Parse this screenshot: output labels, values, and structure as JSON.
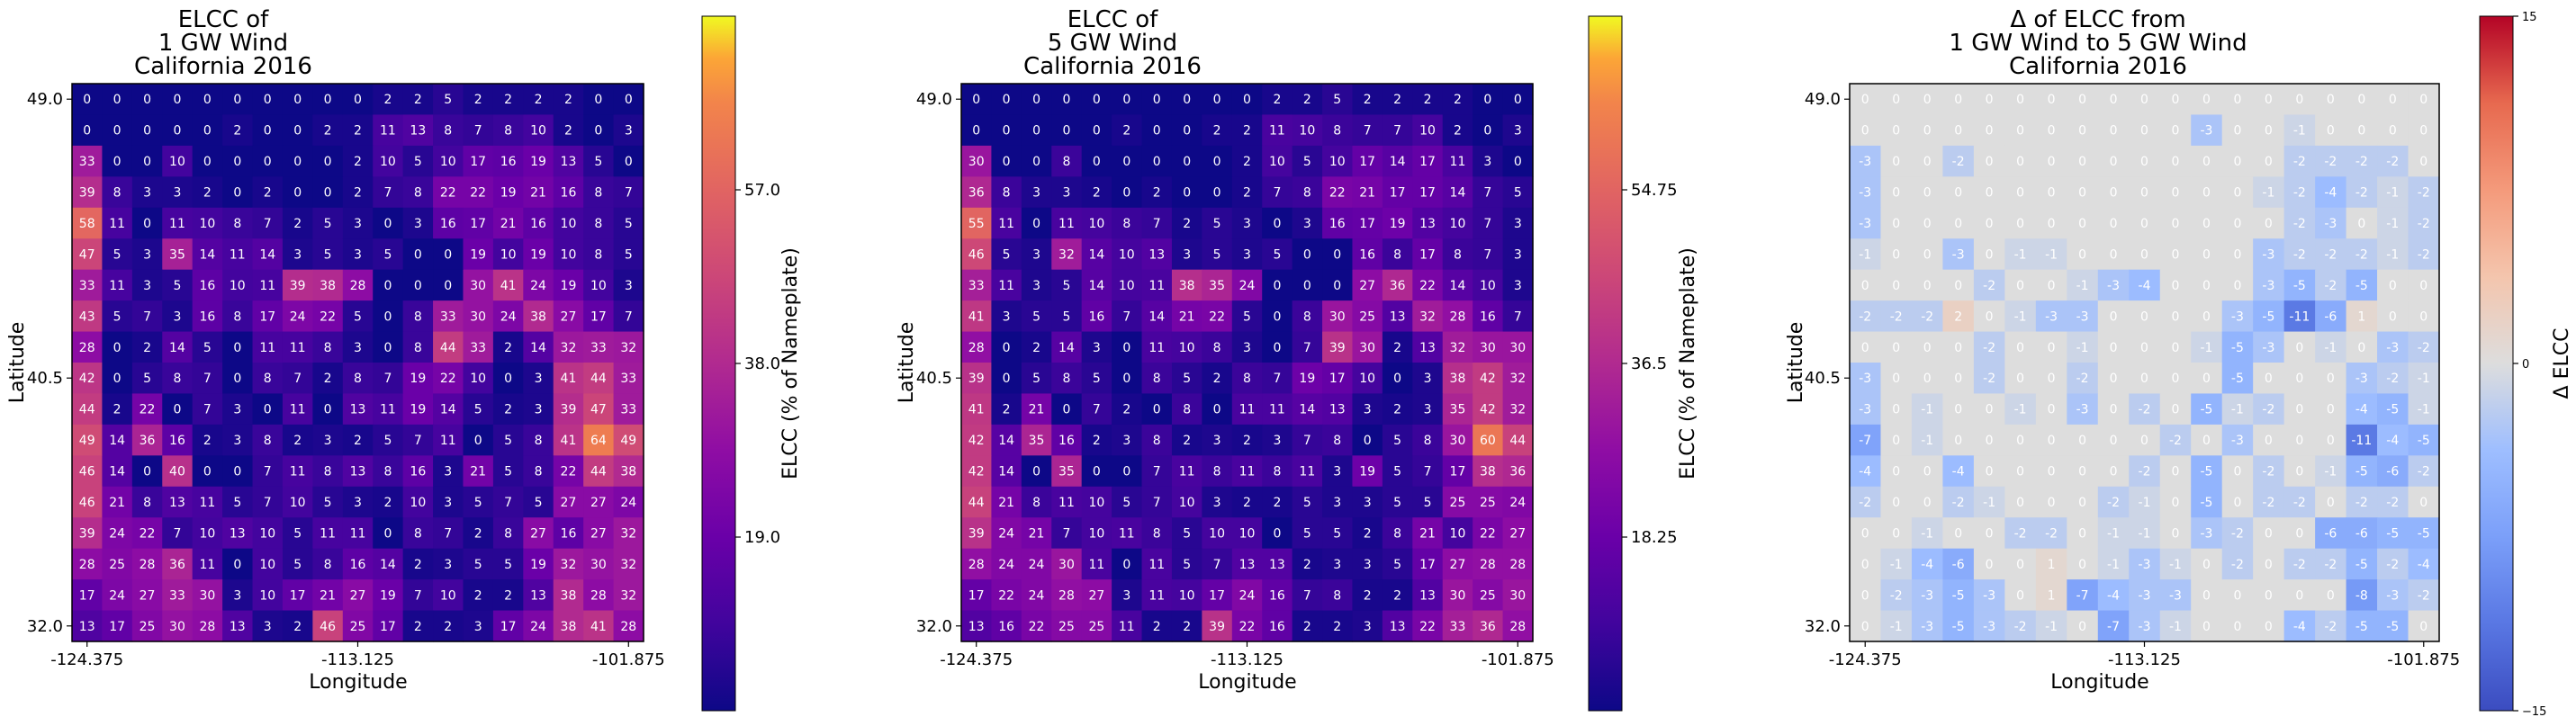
{
  "chart_data": [
    {
      "type": "heatmap",
      "title_lines": [
        "ELCC of",
        "1 GW Wind",
        "California 2016"
      ],
      "xlabel": "Longitude",
      "ylabel": "Latitude",
      "x_ticks": [
        "-124.375",
        "-113.125",
        "-101.875"
      ],
      "y_ticks": [
        "49.0",
        "40.5",
        "32.0"
      ],
      "colormap": "plasma",
      "colorbar": {
        "label": "ELCC (% of Nameplate)",
        "ticks": [
          "19.0",
          "38.0",
          "57.0"
        ],
        "vmin": 0,
        "vmax": 76,
        "tick_values": [
          19,
          38,
          57
        ]
      },
      "rows": [
        "0 0 0 0 0 0 0 0 0 0 2 2 5 2 2 2 2 0 0",
        "0 0 0 0 0 2 0 0 2 2 11 13 8 7 8 10 2 0 3",
        "33 0 0 10 0 0 0 0 0 2 10 5 10 17 16 19 13 5 0",
        "39 8 3 3 2 0 2 0 0 2 7 8 22 22 19 21 16 8 7",
        "58 11 0 11 10 8 7 2 5 3 0 3 16 17 21 16 10 8 5",
        "47 5 3 35 14 11 14 3 5 3 5 0 0 19 10 19 10 8 5",
        "33 11 3 5 16 10 11 39 38 28 0 0 0 30 41 24 19 10 3",
        "43 5 7 3 16 8 17 24 22 5 0 8 33 30 24 38 27 17 7",
        "28 0 2 14 5 0 11 11 8 3 0 8 44 33 2 14 32 33 32",
        "42 0 5 8 7 0 8 7 2 8 7 19 22 10 0 3 41 44 33",
        "44 2 22 0 7 3 0 11 0 13 11 19 14 5 2 3 39 47 33",
        "49 14 36 16 2 3 8 2 3 2 5 7 11 0 5 8 41 64 49",
        "46 14 0 40 0 0 7 11 8 13 8 16 3 21 5 8 22 44 38",
        "46 21 8 13 11 5 7 10 5 3 2 10 3 5 7 5 27 27 24",
        "39 24 22 7 10 13 10 5 11 11 0 8 7 2 8 27 16 27 32",
        "28 25 28 36 11 0 10 5 8 16 14 2 3 5 5 19 32 30 32",
        "17 24 27 33 30 3 10 17 21 27 19 7 10 2 2 13 38 28 32",
        "13 17 25 30 28 13 3 2 46 25 17 2 2 3 17 24 38 41 28"
      ]
    },
    {
      "type": "heatmap",
      "title_lines": [
        "ELCC of",
        "5 GW Wind",
        "California 2016"
      ],
      "xlabel": "Longitude",
      "ylabel": "Latitude",
      "x_ticks": [
        "-124.375",
        "-113.125",
        "-101.875"
      ],
      "y_ticks": [
        "49.0",
        "40.5",
        "32.0"
      ],
      "colormap": "plasma",
      "colorbar": {
        "label": "ELCC (% of Nameplate)",
        "ticks": [
          "18.25",
          "36.5",
          "54.75"
        ],
        "vmin": 0,
        "vmax": 73,
        "tick_values": [
          18.25,
          36.5,
          54.75
        ]
      },
      "rows": [
        "0 0 0 0 0 0 0 0 0 0 2 2 5 2 2 2 2 0 0",
        "0 0 0 0 0 2 0 0 2 2 11 10 8 7 7 10 2 0 3",
        "30 0 0 8 0 0 0 0 0 2 10 5 10 17 14 17 11 3 0",
        "36 8 3 3 2 0 2 0 0 2 7 8 22 21 17 17 14 7 5",
        "55 11 0 11 10 8 7 2 5 3 0 3 16 17 19 13 10 7 3",
        "46 5 3 32 14 10 13 3 5 3 5 0 0 16 8 17 8 7 3",
        "33 11 3 5 14 10 11 38 35 24 0 0 0 27 36 22 14 10 3",
        "41 3 5 5 16 7 14 21 22 5 0 8 30 25 13 32 28 16 7",
        "28 0 2 14 3 0 11 10 8 3 0 7 39 30 2 13 32 30 30",
        "39 0 5 8 5 0 8 5 2 8 7 19 17 10 0 3 38 42 32",
        "41 2 21 0 7 2 0 8 0 11 11 14 13 3 2 3 35 42 32",
        "42 14 35 16 2 3 8 2 3 2 3 7 8 0 5 8 30 60 44",
        "42 14 0 35 0 0 7 11 8 11 8 11 3 19 5 7 17 38 36",
        "44 21 8 11 10 5 7 10 3 2 2 5 3 3 5 5 25 25 24",
        "39 24 21 7 10 11 8 5 10 10 0 5 5 2 8 21 10 22 27",
        "28 24 24 30 11 0 11 5 7 13 13 2 3 3 5 17 27 28 28",
        "17 22 24 28 27 3 11 10 17 24 16 7 8 2 2 13 30 25 30",
        "13 16 22 25 25 11 2 2 39 22 16 2 2 3 13 22 33 36 28"
      ]
    },
    {
      "type": "heatmap",
      "title_lines": [
        "Δ of ELCC from",
        "1 GW Wind to 5 GW Wind",
        "California 2016"
      ],
      "xlabel": "Longitude",
      "ylabel": "Latitude",
      "x_ticks": [
        "-124.375",
        "-113.125",
        "-101.875"
      ],
      "y_ticks": [
        "49.0",
        "40.5",
        "32.0"
      ],
      "colormap": "coolwarm",
      "colorbar": {
        "label": "Δ ELCC",
        "ticks": [
          "−15",
          "0",
          "15"
        ],
        "vmin": -15,
        "vmax": 15,
        "tick_values": [
          -15,
          0,
          15
        ]
      },
      "rows": [
        "0 0 0 0 0 0 0 0 0 0 0 0 0 0 0 0 0 0 0",
        "0 0 0 0 0 0 0 0 0 0 0 -3 0 0 -1 0 0 0 0",
        "-3 0 0 -2 0 0 0 0 0 0 0 0 0 0 -2 -2 -2 -2 0",
        "-3 0 0 0 0 0 0 0 0 0 0 0 0 -1 -2 -4 -2 -1 -2",
        "-3 0 0 0 0 0 0 0 0 0 0 0 0 0 -2 -3 0 -1 -2",
        "-1 0 0 -3 0 -1 -1 0 0 0 0 0 0 -3 -2 -2 -2 -1 -2",
        "0 0 0 0 -2 0 0 -1 -3 -4 0 0 0 -3 -5 -2 -5 0 0",
        "-2 -2 -2 2 0 -1 -3 -3 0 0 0 0 -3 -5 -11 -6 1 0 0",
        "0 0 0 0 -2 0 0 -1 0 0 0 -1 -5 -3 0 -1 0 -3 -2",
        "-3 0 0 0 -2 0 0 -2 0 0 0 0 -5 0 0 0 -3 -2 -1",
        "-3 0 -1 0 0 -1 0 -3 0 -2 0 -5 -1 -2 0 0 -4 -5 -1",
        "-7 0 -1 0 0 0 0 0 0 0 -2 0 -3 0 0 0 -11 -4 -5",
        "-4 0 0 -4 0 0 0 0 0 -2 0 -5 0 -2 0 -1 -5 -6 -2",
        "-2 0 0 -2 -1 0 0 0 -2 -1 0 -5 0 -2 -2 0 -2 -2 0",
        "0 0 -1 0 0 -2 -2 0 -1 -1 0 -3 -2 0 0 -6 -6 -5 -5",
        "0 -1 -4 -6 0 0 1 0 -1 -3 -1 0 -2 0 -2 -2 -5 -2 -4",
        "0 -2 -3 -5 -3 0 1 -7 -4 -3 -3 0 0 0 0 0 -8 -3 -2",
        "0 -1 -3 -5 -3 -2 -1 0 -7 -3 -1 0 0 0 -4 -2 -5 -5 0"
      ]
    }
  ]
}
